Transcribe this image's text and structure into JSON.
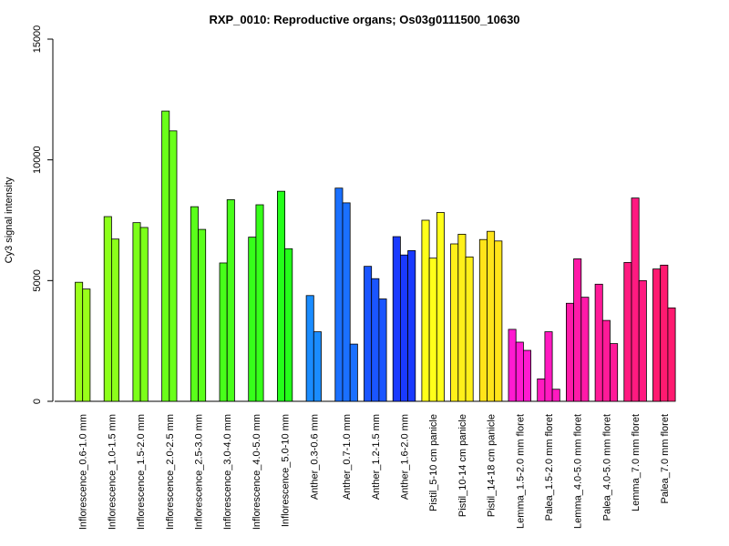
{
  "chart_data": {
    "type": "bar",
    "title": "RXP_0010: Reproductive organs; Os03g0111500_10630",
    "xlabel": "",
    "ylabel": "Cy3 signal intensity",
    "ylim": [
      0,
      15000
    ],
    "yticks": [
      0,
      5000,
      10000,
      15000
    ],
    "grid": false,
    "legend": "none",
    "groups": [
      {
        "label": "Inflorescence_0.6-1.0 mm",
        "values": [
          4930,
          4650
        ],
        "color": "#9AFF1A"
      },
      {
        "label": "Inflorescence_1.0-1.5 mm",
        "values": [
          7650,
          6720
        ],
        "color": "#8CFF1A"
      },
      {
        "label": "Inflorescence_1.5-2.0 mm",
        "values": [
          7400,
          7200
        ],
        "color": "#7CFF1A"
      },
      {
        "label": "Inflorescence_2.0-2.5 mm",
        "values": [
          12020,
          11200
        ],
        "color": "#6AFF1A"
      },
      {
        "label": "Inflorescence_2.5-3.0 mm",
        "values": [
          8060,
          7120
        ],
        "color": "#5AFF1A"
      },
      {
        "label": "Inflorescence_3.0-4.0 mm",
        "values": [
          5730,
          8350
        ],
        "color": "#48FF1A"
      },
      {
        "label": "Inflorescence_4.0-5.0 mm",
        "values": [
          6800,
          8140
        ],
        "color": "#36FF1A"
      },
      {
        "label": "Inflorescence_5.0-10 mm",
        "values": [
          8700,
          6320
        ],
        "color": "#24FF1A"
      },
      {
        "label": "Anther_0.3-0.6 mm",
        "values": [
          4380,
          2880
        ],
        "color": "#1A8CFF"
      },
      {
        "label": "Anther_0.7-1.0 mm",
        "values": [
          8830,
          8220,
          2370
        ],
        "color": "#1A70FF"
      },
      {
        "label": "Anther_1.2-1.5 mm",
        "values": [
          5590,
          5080,
          4240
        ],
        "color": "#1A55FF"
      },
      {
        "label": "Anther_1.6-2.0 mm",
        "values": [
          6820,
          6060,
          6240
        ],
        "color": "#1A3AFF"
      },
      {
        "label": "Pistil_5-10 cm panicle",
        "values": [
          7500,
          5930,
          7820
        ],
        "color": "#FFFF1A"
      },
      {
        "label": "Pistil_10-14 cm panicle",
        "values": [
          6520,
          6920,
          5980
        ],
        "color": "#FFF01A"
      },
      {
        "label": "Pistil_14-18 cm panicle",
        "values": [
          6700,
          7040,
          6640
        ],
        "color": "#FFE41A"
      },
      {
        "label": "Lemma_1.5-2.0 mm floret",
        "values": [
          2980,
          2450,
          2110
        ],
        "color": "#FF1AD0"
      },
      {
        "label": "Palea_1.5-2.0 mm floret",
        "values": [
          930,
          2880,
          500
        ],
        "color": "#FF1AC0"
      },
      {
        "label": "Lemma_4.0-5.0 mm floret",
        "values": [
          4060,
          5900,
          4310
        ],
        "color": "#FF1AA8"
      },
      {
        "label": "Palea_4.0-5.0 mm floret",
        "values": [
          4850,
          3350,
          2390
        ],
        "color": "#FF1A98"
      },
      {
        "label": "Lemma_7.0 mm floret",
        "values": [
          5750,
          8420,
          5000
        ],
        "color": "#FF1A80"
      },
      {
        "label": "Palea_7.0 mm floret",
        "values": [
          5480,
          5640,
          3870
        ],
        "color": "#FF1A70"
      }
    ]
  }
}
